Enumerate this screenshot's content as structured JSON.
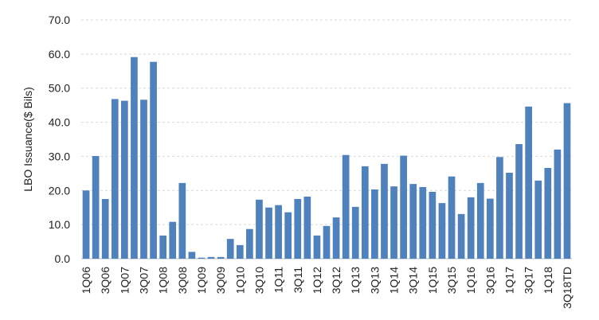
{
  "chart_data": {
    "type": "bar",
    "title": "",
    "xlabel": "",
    "ylabel": "LBO Issuance($ Bils)",
    "ylim": [
      0,
      70
    ],
    "yticks": [
      "0.0",
      "10.0",
      "20.0",
      "30.0",
      "40.0",
      "50.0",
      "60.0",
      "70.0"
    ],
    "grid": true,
    "legend": "none",
    "bar_color": "#4f81bd",
    "categories": [
      "1Q06",
      "2Q06",
      "3Q06",
      "4Q06",
      "1Q07",
      "2Q07",
      "3Q07",
      "4Q07",
      "1Q08",
      "2Q08",
      "3Q08",
      "4Q08",
      "1Q09",
      "2Q09",
      "3Q09",
      "4Q09",
      "1Q10",
      "2Q10",
      "3Q10",
      "4Q10",
      "1Q11",
      "2Q11",
      "3Q11",
      "4Q11",
      "1Q12",
      "2Q12",
      "3Q12",
      "4Q12",
      "1Q13",
      "2Q13",
      "3Q13",
      "4Q13",
      "1Q14",
      "2Q14",
      "3Q14",
      "4Q14",
      "1Q15",
      "2Q15",
      "3Q15",
      "4Q15",
      "1Q16",
      "2Q16",
      "3Q16",
      "4Q16",
      "1Q17",
      "2Q17",
      "3Q17",
      "4Q17",
      "1Q18",
      "2Q18",
      "3Q18TD"
    ],
    "visible_xticks": [
      "1Q06",
      "3Q06",
      "1Q07",
      "3Q07",
      "1Q08",
      "3Q08",
      "1Q09",
      "3Q09",
      "1Q10",
      "3Q10",
      "1Q11",
      "3Q11",
      "1Q12",
      "3Q12",
      "1Q13",
      "3Q13",
      "1Q14",
      "3Q14",
      "1Q15",
      "3Q15",
      "1Q16",
      "3Q16",
      "1Q17",
      "3Q17",
      "1Q18",
      "3Q18TD"
    ],
    "values": [
      20.0,
      30.1,
      17.5,
      46.8,
      46.3,
      59.1,
      46.6,
      57.7,
      6.8,
      10.8,
      22.2,
      2.0,
      0.3,
      0.5,
      0.5,
      5.8,
      4.0,
      8.7,
      17.3,
      15.0,
      15.7,
      13.6,
      17.5,
      18.2,
      6.8,
      9.6,
      12.1,
      30.4,
      15.2,
      27.1,
      20.3,
      27.8,
      21.2,
      30.2,
      21.9,
      21.0,
      19.6,
      16.3,
      24.1,
      13.1,
      18.0,
      22.2,
      17.6,
      29.8,
      25.2,
      33.6,
      44.6,
      22.9,
      26.6,
      32.0,
      45.6
    ]
  }
}
